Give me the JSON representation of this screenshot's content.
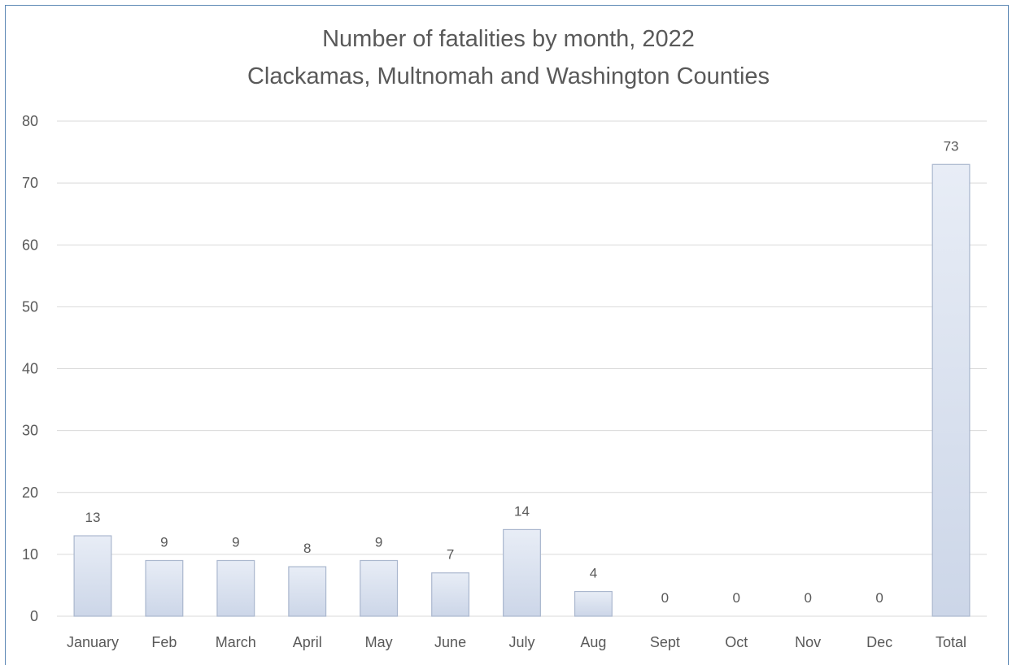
{
  "chart_data": {
    "type": "bar",
    "title": "Number of fatalities by month, 2022",
    "subtitle": "Clackamas, Multnomah and Washington Counties",
    "categories": [
      "January",
      "Feb",
      "March",
      "April",
      "May",
      "June",
      "July",
      "Aug",
      "Sept",
      "Oct",
      "Nov",
      "Dec",
      "Total"
    ],
    "values": [
      13,
      9,
      9,
      8,
      9,
      7,
      14,
      4,
      0,
      0,
      0,
      0,
      73
    ],
    "data_labels": [
      "13",
      "9",
      "9",
      "8",
      "9",
      "7",
      "14",
      "4",
      "0",
      "0",
      "0",
      "0",
      "73"
    ],
    "xlabel": "",
    "ylabel": "",
    "ylim": [
      0,
      80
    ],
    "yticks": [
      0,
      10,
      20,
      30,
      40,
      50,
      60,
      70,
      80
    ],
    "ytick_labels": [
      "0",
      "10",
      "20",
      "30",
      "40",
      "50",
      "60",
      "70",
      "80"
    ],
    "grid": true,
    "legend": "none",
    "colors": {
      "bar_fill_top": "#e8edf6",
      "bar_fill_bottom": "#ccd6e8",
      "bar_stroke": "#aab7ce",
      "gridline": "#d9d9d9",
      "text": "#595959",
      "border": "#5b87b4"
    }
  }
}
